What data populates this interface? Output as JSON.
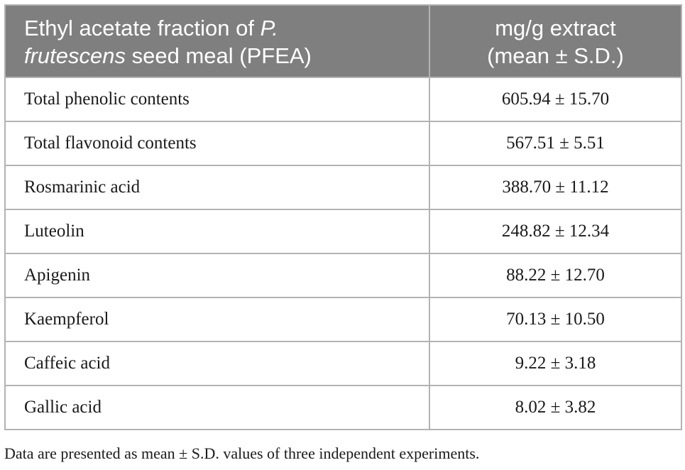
{
  "table": {
    "header": {
      "col1_part1": "Ethyl acetate fraction of ",
      "col1_italic1": "P.",
      "col1_italic2": "frutescens",
      "col1_part2": " seed meal (PFEA)",
      "col2_line1": "mg/g extract",
      "col2_line2": "(mean ± S.D.)"
    },
    "rows": [
      {
        "name": "Total phenolic contents",
        "value": "605.94 ± 15.70"
      },
      {
        "name": "Total flavonoid contents",
        "value": "567.51 ± 5.51"
      },
      {
        "name": "Rosmarinic acid",
        "value": "388.70 ± 11.12"
      },
      {
        "name": "Luteolin",
        "value": "248.82 ± 12.34"
      },
      {
        "name": "Apigenin",
        "value": "88.22 ± 12.70"
      },
      {
        "name": "Kaempferol",
        "value": "70.13 ± 10.50"
      },
      {
        "name": "Caffeic acid",
        "value": "9.22 ± 3.18"
      },
      {
        "name": "Gallic acid",
        "value": "8.02 ± 3.82"
      }
    ]
  },
  "footnote": "Data are presented as mean ± S.D. values of three independent experiments.",
  "colors": {
    "header_bg": "#7f7f7f",
    "header_text": "#ffffff",
    "border": "#b3b3b3",
    "body_text": "#1a1a1a"
  }
}
